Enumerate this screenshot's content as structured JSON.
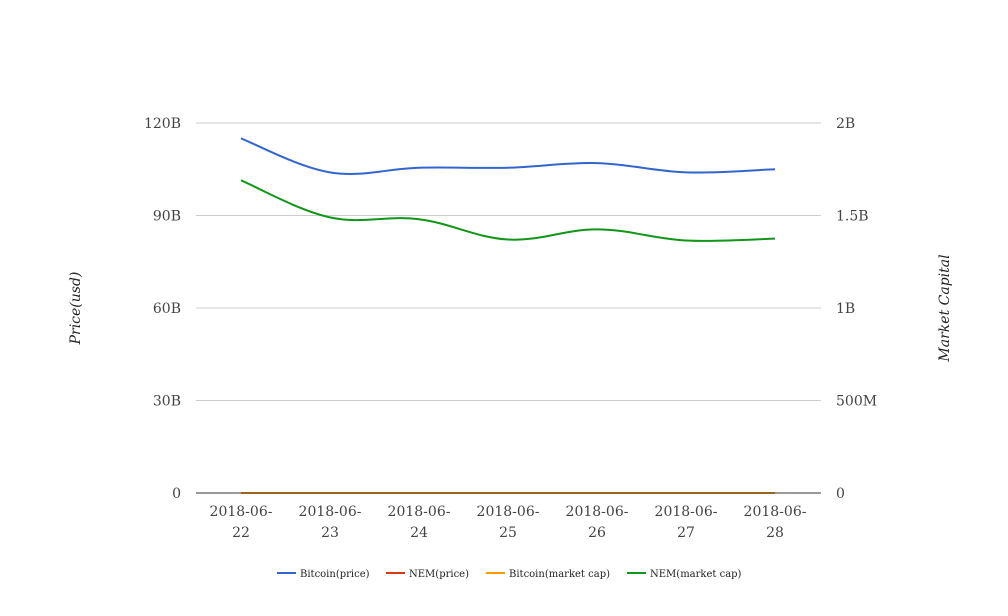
{
  "chart_data": {
    "type": "line",
    "title": "",
    "categories": [
      "2018-06-22",
      "2018-06-23",
      "2018-06-24",
      "2018-06-25",
      "2018-06-26",
      "2018-06-27",
      "2018-06-28"
    ],
    "category_lines": [
      [
        "2018-06-",
        "22"
      ],
      [
        "2018-06-",
        "23"
      ],
      [
        "2018-06-",
        "24"
      ],
      [
        "2018-06-",
        "25"
      ],
      [
        "2018-06-",
        "26"
      ],
      [
        "2018-06-",
        "27"
      ],
      [
        "2018-06-",
        "28"
      ]
    ],
    "ylabel_left": "Price(usd)",
    "ylabel_right": "Market Capital",
    "ylim_left": [
      0,
      120000000000
    ],
    "ylim_right": [
      0,
      2000000000
    ],
    "yticks_left": [
      {
        "value": 0,
        "label": "0"
      },
      {
        "value": 30000000000,
        "label": "30B"
      },
      {
        "value": 60000000000,
        "label": "60B"
      },
      {
        "value": 90000000000,
        "label": "90B"
      },
      {
        "value": 120000000000,
        "label": "120B"
      }
    ],
    "yticks_right": [
      {
        "value": 0,
        "label": "0"
      },
      {
        "value": 500000000,
        "label": "500M"
      },
      {
        "value": 1000000000,
        "label": "1B"
      },
      {
        "value": 1500000000,
        "label": "1.5B"
      },
      {
        "value": 2000000000,
        "label": "2B"
      }
    ],
    "grid": true,
    "legend_position": "bottom",
    "series": [
      {
        "name": "Bitcoin(price)",
        "axis": "left",
        "color": "#3366cc",
        "values": [
          115000000000,
          104000000000,
          105500000000,
          105500000000,
          107000000000,
          104000000000,
          105000000000
        ]
      },
      {
        "name": "NEM(price)",
        "axis": "left",
        "color": "#dc3912",
        "values": [
          0.2,
          0.19,
          0.19,
          0.18,
          0.18,
          0.17,
          0.17
        ]
      },
      {
        "name": "Bitcoin(market cap)",
        "axis": "left",
        "color": "#ff9900",
        "values": [
          6500,
          6100,
          6150,
          6200,
          6250,
          6050,
          6100
        ]
      },
      {
        "name": "NEM(market cap)",
        "axis": "right",
        "color": "#109618",
        "values": [
          1690000000,
          1490000000,
          1480000000,
          1370000000,
          1425000000,
          1365000000,
          1375000000
        ]
      }
    ]
  }
}
